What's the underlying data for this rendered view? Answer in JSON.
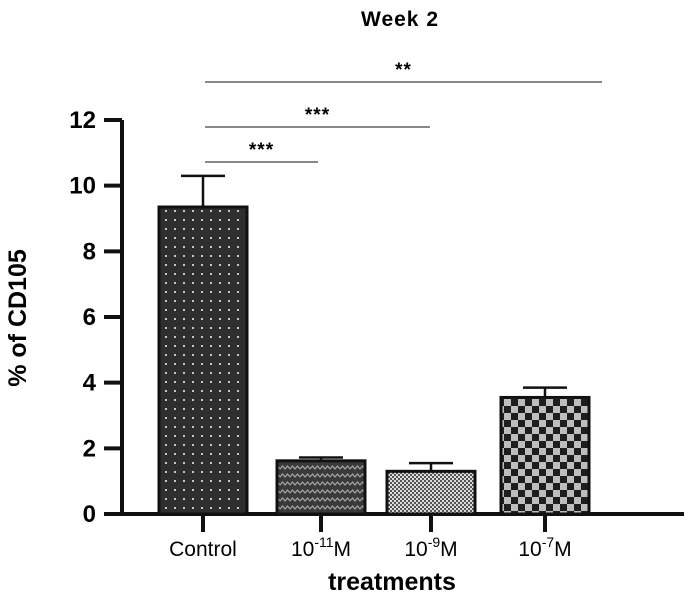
{
  "chart_data": {
    "type": "bar",
    "title": "Week 2",
    "xlabel": "treatments",
    "ylabel": "% of CD105",
    "ylim": [
      0,
      12
    ],
    "yticks": [
      "0",
      "2",
      "4",
      "6",
      "8",
      "10",
      "12"
    ],
    "categories": [
      {
        "base": "Control",
        "exp": "",
        "unit": ""
      },
      {
        "base": "10",
        "exp": "-11",
        "unit": "M"
      },
      {
        "base": "10",
        "exp": "-9",
        "unit": "M"
      },
      {
        "base": "10",
        "exp": "-7",
        "unit": "M"
      }
    ],
    "values": [
      9.35,
      1.62,
      1.3,
      3.55
    ],
    "errors": [
      0.95,
      0.1,
      0.25,
      0.3
    ],
    "patterns": [
      "dots-dark",
      "wave-dark",
      "fine-check",
      "checker"
    ],
    "colors": {
      "bar_fill": "#2e2e2e",
      "pattern_light": "#c8c8c8",
      "axis": "#111111"
    },
    "significance": [
      {
        "from": 0,
        "to": 1,
        "label": "***"
      },
      {
        "from": 0,
        "to": 2,
        "label": "***"
      },
      {
        "from": 0,
        "to": 3,
        "label": "**"
      }
    ],
    "grid": false,
    "legend": "none"
  }
}
